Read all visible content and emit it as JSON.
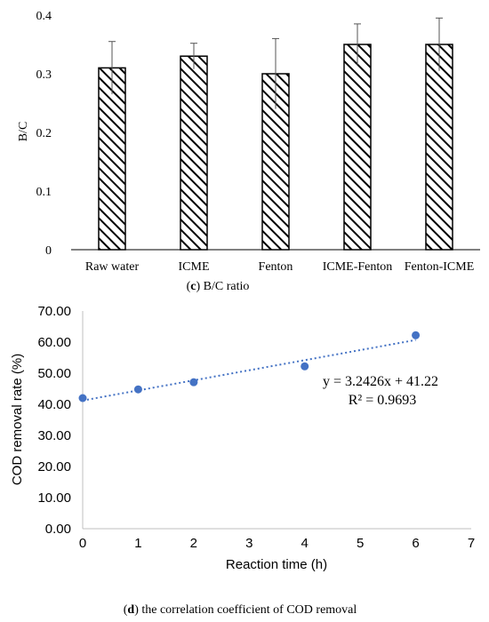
{
  "chart_data": [
    {
      "type": "bar",
      "title": "",
      "caption": {
        "prefix": "(",
        "bold": "c",
        "rest": ") B/C ratio"
      },
      "xlabel": "",
      "ylabel": "B/C",
      "categories": [
        "Raw water",
        "ICME",
        "Fenton",
        "ICME-Fenton",
        "Fenton-ICME"
      ],
      "values": [
        0.31,
        0.33,
        0.3,
        0.35,
        0.35
      ],
      "error_bars": [
        0.045,
        0.022,
        0.06,
        0.035,
        0.045
      ],
      "ylim": [
        0,
        0.4
      ],
      "yticks": [
        "0",
        "0.1",
        "0.2",
        "0.3",
        "0.4"
      ],
      "ytick_values": [
        0,
        0.1,
        0.2,
        0.3,
        0.4
      ],
      "grid": false,
      "bar_fill": "diagonal-hatch",
      "bar_color": "#000000"
    },
    {
      "type": "scatter",
      "title": "",
      "caption": {
        "prefix": "(",
        "bold": "d",
        "rest": ") the correlation coefficient of COD removal"
      },
      "xlabel": "Reaction time (h)",
      "ylabel": "COD removal rate (%)",
      "x": [
        0,
        1,
        2,
        4,
        6
      ],
      "y": [
        42.0,
        44.8,
        47.1,
        52.2,
        62.2
      ],
      "xlim": [
        0,
        7
      ],
      "ylim": [
        0,
        70
      ],
      "xticks": [
        "0",
        "1",
        "2",
        "3",
        "4",
        "5",
        "6",
        "7"
      ],
      "xtick_values": [
        0,
        1,
        2,
        3,
        4,
        5,
        6,
        7
      ],
      "yticks": [
        "0.00",
        "10.00",
        "20.00",
        "30.00",
        "40.00",
        "50.00",
        "60.00",
        "70.00"
      ],
      "ytick_values": [
        0,
        10,
        20,
        30,
        40,
        50,
        60,
        70
      ],
      "trendline": {
        "slope": 3.2426,
        "intercept": 41.22,
        "style": "dotted"
      },
      "equation": "y = 3.2426x + 41.22",
      "r_squared": "R² = 0.9693",
      "grid": false,
      "marker_color": "#4472c4"
    }
  ]
}
